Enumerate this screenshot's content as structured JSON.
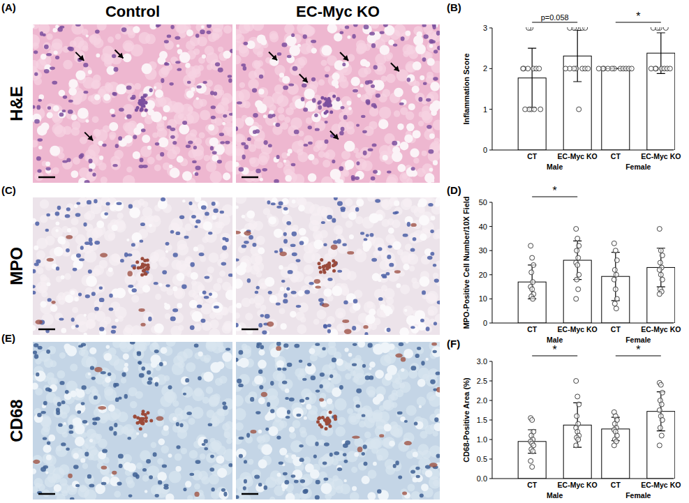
{
  "figure": {
    "panel_labels": [
      "(A)",
      "(C)",
      "(E)"
    ],
    "columns": [
      "Control",
      "EC-Myc KO"
    ],
    "rows": [
      "H&E",
      "MPO",
      "CD68"
    ]
  },
  "chart_data": [
    {
      "type": "bar",
      "title": "(B)",
      "y_label": "Inflammation Score",
      "categories": [
        "CT",
        "EC-Myc KO",
        "CT",
        "EC-Myc KO"
      ],
      "group_labels": [
        "Male",
        "Female"
      ],
      "values": [
        1.77,
        2.31,
        2.0,
        2.38
      ],
      "errors": [
        0.73,
        0.63,
        0,
        0.5
      ],
      "points": [
        [
          3,
          3,
          2,
          2,
          2,
          2,
          2,
          2,
          1,
          1,
          1,
          1,
          1
        ],
        [
          3,
          3,
          3,
          3,
          3,
          2,
          2,
          2,
          2,
          2,
          2,
          2,
          1
        ],
        [
          2,
          2,
          2,
          2,
          2,
          2,
          2,
          2,
          2,
          2,
          2
        ],
        [
          3,
          3,
          3,
          3,
          2,
          2,
          2,
          2,
          2,
          2,
          2
        ]
      ],
      "annotations": [
        {
          "text": "p=0.058",
          "from": 0,
          "to": 1
        },
        {
          "text": "*",
          "from": 2,
          "to": 3
        }
      ],
      "color": "#ffffff",
      "ylim": [
        0,
        3
      ],
      "yticks": [
        0,
        1,
        2,
        3
      ],
      "grid": false
    },
    {
      "type": "bar",
      "title": "(D)",
      "y_label": "MPO-Positive Cell Number/10X Field",
      "categories": [
        "CT",
        "EC-Myc KO",
        "CT",
        "EC-Myc KO"
      ],
      "group_labels": [
        "Male",
        "Female"
      ],
      "values": [
        17,
        26,
        19.3,
        23
      ],
      "errors": [
        7,
        8,
        10,
        8
      ],
      "points": [
        [
          32,
          27,
          24,
          21,
          17,
          15,
          14,
          12,
          11,
          10
        ],
        [
          39,
          35,
          32,
          30,
          27,
          25,
          24,
          20,
          18,
          14,
          10
        ],
        [
          33,
          30,
          26,
          22,
          20,
          18,
          14,
          10,
          8,
          6
        ],
        [
          39,
          30,
          28,
          25,
          23,
          22,
          20,
          18,
          14,
          13,
          12
        ]
      ],
      "annotations": [
        {
          "text": "*",
          "from": 0,
          "to": 1
        }
      ],
      "color": "#ffffff",
      "ylim": [
        0,
        50
      ],
      "yticks": [
        0,
        10,
        20,
        30,
        40,
        50
      ],
      "grid": false
    },
    {
      "type": "bar",
      "title": "(F)",
      "y_label": "CD68-Positive Area (%)",
      "categories": [
        "CT",
        "EC-Myc KO",
        "CT",
        "EC-Myc KO"
      ],
      "group_labels": [
        "Male",
        "Female"
      ],
      "values": [
        0.95,
        1.37,
        1.27,
        1.72
      ],
      "errors": [
        0.3,
        0.57,
        0.3,
        0.5
      ],
      "points": [
        [
          1.55,
          1.5,
          1.2,
          1.1,
          1.0,
          0.95,
          0.9,
          0.85,
          0.75,
          0.7,
          0.45,
          0.3
        ],
        [
          2.5,
          2.1,
          1.9,
          1.6,
          1.4,
          1.3,
          1.2,
          1.1,
          1.05,
          1.0,
          0.85
        ],
        [
          1.7,
          1.6,
          1.5,
          1.4,
          1.3,
          1.25,
          1.2,
          1.1,
          1.0,
          0.95,
          0.85
        ],
        [
          2.45,
          2.4,
          2.2,
          2.0,
          1.9,
          1.75,
          1.6,
          1.5,
          1.3,
          1.1,
          0.85
        ]
      ],
      "annotations": [
        {
          "text": "*",
          "from": 0,
          "to": 1
        },
        {
          "text": "*",
          "from": 2,
          "to": 3
        }
      ],
      "color": "#ffffff",
      "ylim": [
        0,
        3
      ],
      "yticks": [
        {
          "value": 0,
          "label": "0.0"
        },
        {
          "value": 0.5,
          "label": "0.5"
        },
        {
          "value": 1,
          "label": "1.0"
        },
        {
          "value": 1.5,
          "label": "1.5"
        },
        {
          "value": 2,
          "label": "2.0"
        },
        {
          "value": 2.5,
          "label": "2.5"
        },
        {
          "value": 3,
          "label": "3.0"
        }
      ],
      "grid": false
    }
  ]
}
